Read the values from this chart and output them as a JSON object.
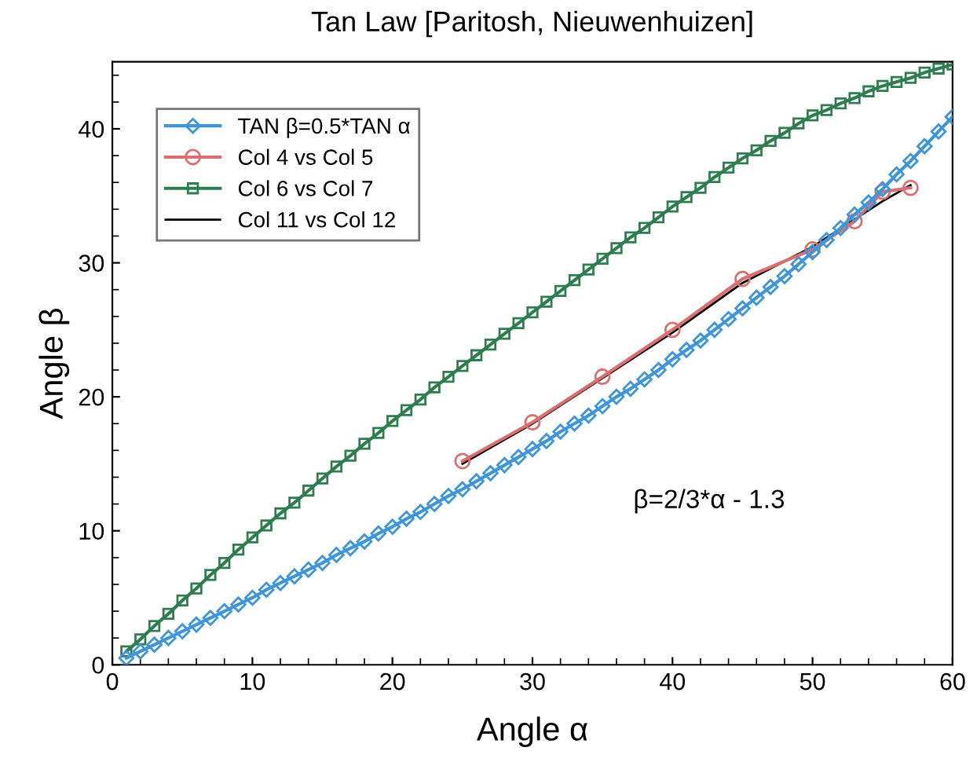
{
  "chart_data": {
    "type": "line",
    "title": "Tan Law [Paritosh, Nieuwenhuizen]",
    "xlabel": "Angle α",
    "ylabel": "Angle β",
    "xlim": [
      0,
      60
    ],
    "ylim": [
      0,
      45
    ],
    "xticks": [
      0,
      10,
      20,
      30,
      40,
      50,
      60
    ],
    "yticks": [
      0,
      10,
      20,
      30,
      40
    ],
    "grid": false,
    "legend": "top left",
    "annotations": [
      "β=2/3*α - 1.3"
    ],
    "series": [
      {
        "name": "TAN β=0.5*TAN α",
        "color": "#3d95db",
        "marker": "diamond",
        "x": [
          1,
          2,
          3,
          4,
          5,
          6,
          7,
          8,
          9,
          10,
          11,
          12,
          13,
          14,
          15,
          16,
          17,
          18,
          19,
          20,
          21,
          22,
          23,
          24,
          25,
          26,
          27,
          28,
          29,
          30,
          31,
          32,
          33,
          34,
          35,
          36,
          37,
          38,
          39,
          40,
          41,
          42,
          43,
          44,
          45,
          46,
          47,
          48,
          49,
          50,
          51,
          52,
          53,
          54,
          55,
          56,
          57,
          58,
          59,
          60
        ],
        "values": [
          0.5,
          1.0,
          1.5,
          2.0,
          2.5,
          3.0,
          3.5,
          4.0,
          4.5,
          5.0,
          5.6,
          6.1,
          6.6,
          7.1,
          7.6,
          8.2,
          8.7,
          9.2,
          9.8,
          10.3,
          10.9,
          11.4,
          12.0,
          12.6,
          13.1,
          13.7,
          14.3,
          14.9,
          15.5,
          16.1,
          16.7,
          17.4,
          18.0,
          18.6,
          19.3,
          20.0,
          20.6,
          21.3,
          22.0,
          22.8,
          23.5,
          24.2,
          25.0,
          25.8,
          26.6,
          27.4,
          28.2,
          29.0,
          29.9,
          30.8,
          31.7,
          32.6,
          33.6,
          34.5,
          35.5,
          36.6,
          37.6,
          38.7,
          39.8,
          40.9
        ]
      },
      {
        "name": "Col 4 vs Col 5",
        "color": "#d9706e",
        "marker": "circle",
        "x": [
          25,
          30,
          35,
          40,
          45,
          50,
          53,
          55,
          57
        ],
        "values": [
          15.2,
          18.1,
          21.5,
          25.0,
          28.8,
          31.0,
          33.1,
          35.3,
          35.6
        ]
      },
      {
        "name": "Col 6 vs Col 7",
        "color": "#2e7d4f",
        "marker": "square",
        "x": [
          1,
          2,
          3,
          4,
          5,
          6,
          7,
          8,
          9,
          10,
          11,
          12,
          13,
          14,
          15,
          16,
          17,
          18,
          19,
          20,
          21,
          22,
          23,
          24,
          25,
          26,
          27,
          28,
          29,
          30,
          31,
          32,
          33,
          34,
          35,
          36,
          37,
          38,
          39,
          40,
          41,
          42,
          43,
          44,
          45,
          46,
          47,
          48,
          49,
          50,
          51,
          52,
          53,
          54,
          55,
          56,
          57,
          58,
          59,
          60
        ],
        "values": [
          1.0,
          1.9,
          2.9,
          3.8,
          4.8,
          5.7,
          6.7,
          7.6,
          8.6,
          9.5,
          10.4,
          11.3,
          12.1,
          13.0,
          13.9,
          14.8,
          15.6,
          16.5,
          17.3,
          18.2,
          19.0,
          19.8,
          20.7,
          21.5,
          22.3,
          23.1,
          23.9,
          24.7,
          25.5,
          26.3,
          27.1,
          27.9,
          28.7,
          29.5,
          30.3,
          31.1,
          31.9,
          32.6,
          33.4,
          34.2,
          34.9,
          35.6,
          36.4,
          37.1,
          37.8,
          38.4,
          39.1,
          39.7,
          40.4,
          41.0,
          41.4,
          41.9,
          42.3,
          42.8,
          43.2,
          43.5,
          43.8,
          44.2,
          44.5,
          44.8
        ]
      },
      {
        "name": "Col 11 vs Col 12",
        "color": "#000000",
        "marker": "none",
        "x": [
          25,
          30,
          35,
          40,
          45,
          50,
          55,
          57
        ],
        "values": [
          15.0,
          18.0,
          21.4,
          24.8,
          28.5,
          31.2,
          34.6,
          35.8
        ]
      }
    ]
  }
}
